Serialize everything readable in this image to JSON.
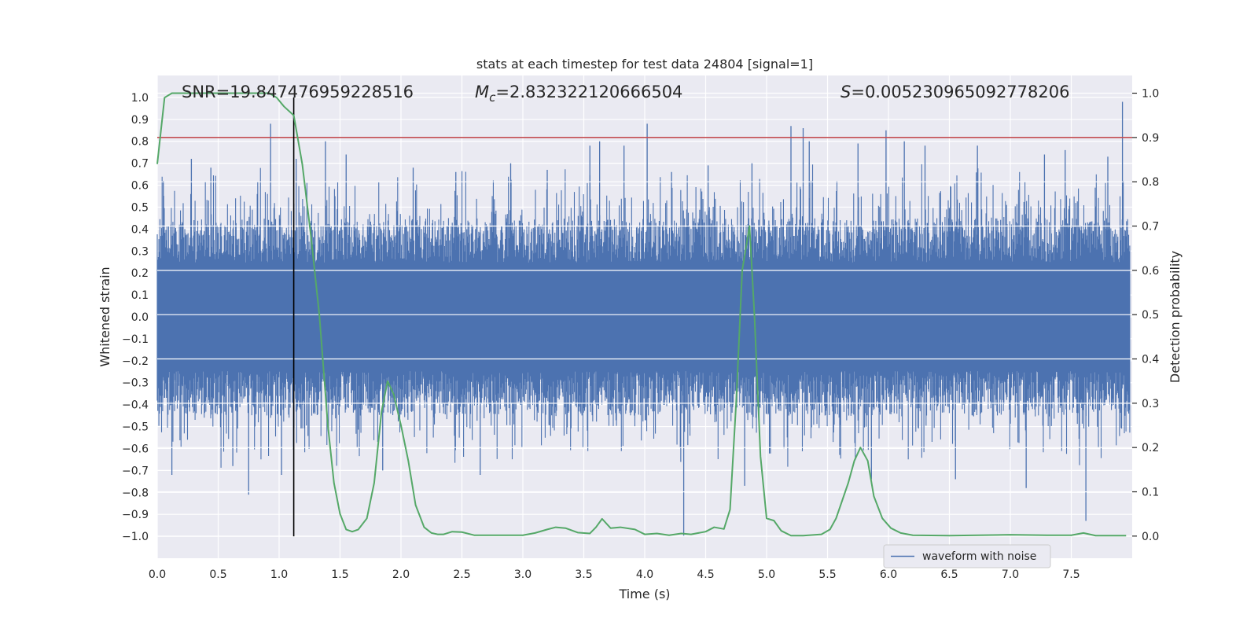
{
  "chart_data": {
    "type": "line",
    "title": "stats at each timestep for test data 24804 [signal=1]",
    "xlabel": "Time (s)",
    "ylabel_left": "Whitened strain",
    "ylabel_right": "Detection probability",
    "xlim": [
      0.0,
      8.0
    ],
    "ylim_left": [
      -1.1,
      1.1
    ],
    "ylim_right": [
      -0.05,
      1.04
    ],
    "xticks": [
      0.0,
      0.5,
      1.0,
      1.5,
      2.0,
      2.5,
      3.0,
      3.5,
      4.0,
      4.5,
      5.0,
      5.5,
      6.0,
      6.5,
      7.0,
      7.5
    ],
    "xtick_labels": [
      "0.0",
      "0.5",
      "1.0",
      "1.5",
      "2.0",
      "2.5",
      "3.0",
      "3.5",
      "4.0",
      "4.5",
      "5.0",
      "5.5",
      "6.0",
      "6.5",
      "7.0",
      "7.5"
    ],
    "yticks_left": [
      1.0,
      0.9,
      0.8,
      0.7,
      0.6,
      0.5,
      0.4,
      0.3,
      0.2,
      0.1,
      0.0,
      -0.1,
      -0.2,
      -0.3,
      -0.4,
      -0.5,
      -0.6,
      -0.7,
      -0.8,
      -0.9,
      -1.0
    ],
    "ytick_labels_left": [
      "1.0",
      "0.9",
      "0.8",
      "0.7",
      "0.6",
      "0.5",
      "0.4",
      "0.3",
      "0.2",
      "0.1",
      "0.0",
      "−0.1",
      "−0.2",
      "−0.3",
      "−0.4",
      "−0.5",
      "−0.6",
      "−0.7",
      "−0.8",
      "−0.9",
      "−1.0"
    ],
    "yticks_right": [
      1.0,
      0.9,
      0.8,
      0.7,
      0.6,
      0.5,
      0.4,
      0.3,
      0.2,
      0.1,
      0.0
    ],
    "ytick_labels_right": [
      "1.0",
      "0.9",
      "0.8",
      "0.7",
      "0.6",
      "0.5",
      "0.4",
      "0.3",
      "0.2",
      "0.1",
      "0.0"
    ],
    "grid": true,
    "annotations": {
      "snr": "SNR=19.847476959228516",
      "mc_symbol": "M",
      "mc_sub": "c",
      "mc_value": "=2.832322120666504",
      "s_symbol": "S",
      "s_value": "=0.005230965092778206"
    },
    "threshold_right": 0.9,
    "marker_time": 1.12,
    "marker_range_left": [
      -1.0,
      1.0
    ],
    "series": [
      {
        "name": "waveform with noise",
        "color": "#4c72b0",
        "axis": "left",
        "kind": "noise",
        "time_range": [
          0.0,
          7.98
        ],
        "core_amplitude": 0.45,
        "spikes": [
          [
            0.05,
            0.62
          ],
          [
            0.12,
            -0.72
          ],
          [
            0.28,
            0.72
          ],
          [
            0.44,
            0.68
          ],
          [
            0.62,
            -0.68
          ],
          [
            0.75,
            -0.81
          ],
          [
            0.93,
            0.88
          ],
          [
            1.02,
            -0.72
          ],
          [
            1.14,
            0.72
          ],
          [
            1.38,
            0.8
          ],
          [
            1.55,
            0.74
          ],
          [
            1.85,
            -0.7
          ],
          [
            2.1,
            0.68
          ],
          [
            2.45,
            0.66
          ],
          [
            2.65,
            -0.72
          ],
          [
            2.9,
            0.7
          ],
          [
            3.2,
            0.67
          ],
          [
            3.55,
            0.78
          ],
          [
            3.63,
            0.8
          ],
          [
            3.83,
            0.78
          ],
          [
            4.02,
            0.88
          ],
          [
            4.22,
            0.66
          ],
          [
            4.32,
            -1.0
          ],
          [
            4.52,
            0.69
          ],
          [
            4.82,
            -0.77
          ],
          [
            4.88,
            0.7
          ],
          [
            5.2,
            0.87
          ],
          [
            5.3,
            0.86
          ],
          [
            5.35,
            0.8
          ],
          [
            5.75,
            0.79
          ],
          [
            5.86,
            -0.74
          ],
          [
            5.98,
            0.85
          ],
          [
            6.13,
            0.8
          ],
          [
            6.3,
            0.78
          ],
          [
            6.55,
            -0.74
          ],
          [
            6.73,
            0.78
          ],
          [
            7.13,
            -0.78
          ],
          [
            7.28,
            0.74
          ],
          [
            7.45,
            0.76
          ],
          [
            7.62,
            -0.93
          ],
          [
            7.8,
            0.73
          ],
          [
            7.92,
            0.98
          ]
        ]
      },
      {
        "name": "detection probability",
        "color": "#55a868",
        "axis": "right",
        "x": [
          0.0,
          0.06,
          0.12,
          0.2,
          0.35,
          0.5,
          0.65,
          0.8,
          0.86,
          0.92,
          0.98,
          1.04,
          1.12,
          1.19,
          1.26,
          1.33,
          1.4,
          1.45,
          1.5,
          1.55,
          1.6,
          1.65,
          1.72,
          1.78,
          1.84,
          1.89,
          1.94,
          2.0,
          2.06,
          2.12,
          2.19,
          2.25,
          2.3,
          2.35,
          2.42,
          2.5,
          2.6,
          2.8,
          3.0,
          3.1,
          3.2,
          3.27,
          3.35,
          3.45,
          3.55,
          3.6,
          3.65,
          3.72,
          3.8,
          3.92,
          4.0,
          4.1,
          4.2,
          4.3,
          4.38,
          4.5,
          4.57,
          4.65,
          4.7,
          4.75,
          4.8,
          4.86,
          4.9,
          4.95,
          5.0,
          5.06,
          5.12,
          5.2,
          5.3,
          5.45,
          5.52,
          5.57,
          5.62,
          5.67,
          5.72,
          5.77,
          5.83,
          5.88,
          5.95,
          6.02,
          6.1,
          6.2,
          6.5,
          7.0,
          7.3,
          7.5,
          7.6,
          7.7,
          7.8,
          7.95
        ],
        "values": [
          0.84,
          0.99,
          1.0,
          1.0,
          1.0,
          1.0,
          1.0,
          1.0,
          1.0,
          1.0,
          0.99,
          0.97,
          0.95,
          0.84,
          0.68,
          0.5,
          0.25,
          0.12,
          0.05,
          0.015,
          0.01,
          0.015,
          0.04,
          0.12,
          0.28,
          0.35,
          0.32,
          0.25,
          0.17,
          0.07,
          0.02,
          0.007,
          0.004,
          0.004,
          0.01,
          0.009,
          0.002,
          0.002,
          0.002,
          0.007,
          0.015,
          0.02,
          0.018,
          0.008,
          0.006,
          0.02,
          0.039,
          0.018,
          0.02,
          0.015,
          0.004,
          0.006,
          0.002,
          0.006,
          0.004,
          0.01,
          0.02,
          0.016,
          0.06,
          0.3,
          0.6,
          0.7,
          0.5,
          0.18,
          0.04,
          0.035,
          0.012,
          0.001,
          0.001,
          0.004,
          0.015,
          0.04,
          0.08,
          0.12,
          0.17,
          0.2,
          0.17,
          0.09,
          0.04,
          0.018,
          0.007,
          0.002,
          0.001,
          0.003,
          0.002,
          0.002,
          0.007,
          0.001,
          0.001,
          0.001
        ]
      }
    ],
    "legend": {
      "entries": [
        "waveform with noise"
      ],
      "location": "lower-right"
    },
    "colors": {
      "background": "#eaeaf2",
      "grid": "#ffffff",
      "threshold": "#c44e52",
      "marker": "#000000",
      "text": "#262626"
    }
  }
}
